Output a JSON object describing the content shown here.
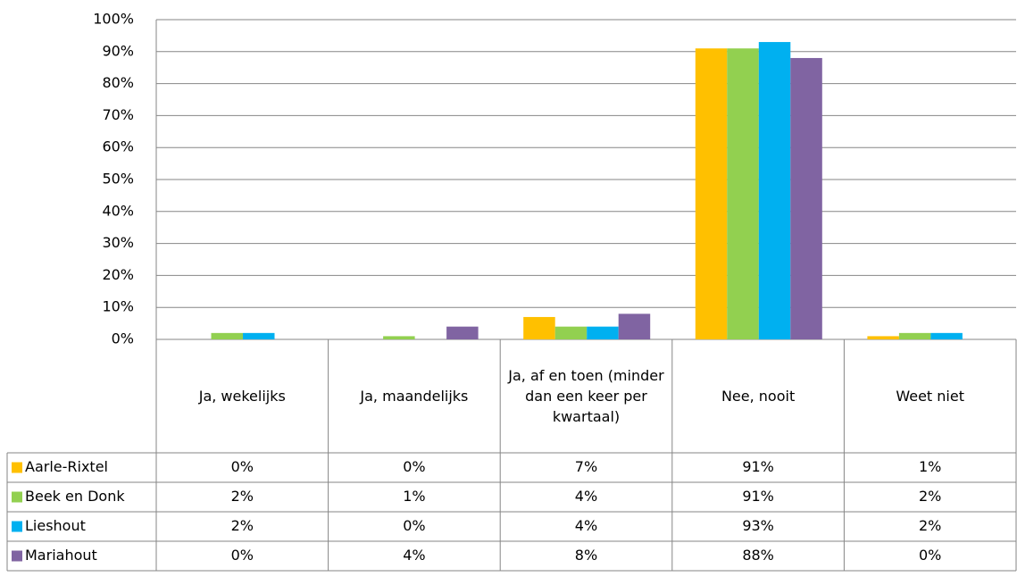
{
  "chart_data": {
    "type": "bar",
    "categories": [
      "Ja, wekelijks",
      "Ja, maandelijks",
      "Ja, af en toen (minder dan een keer per kwartaal)",
      "Nee, nooit",
      "Weet niet"
    ],
    "series": [
      {
        "name": "Aarle-Rixtel",
        "color": "#FFC000",
        "values": [
          0,
          0,
          7,
          91,
          1
        ],
        "value_labels": [
          "0%",
          "0%",
          "7%",
          "91%",
          "1%"
        ]
      },
      {
        "name": "Beek en Donk",
        "color": "#92D050",
        "values": [
          2,
          1,
          4,
          91,
          2
        ],
        "value_labels": [
          "2%",
          "1%",
          "4%",
          "91%",
          "2%"
        ]
      },
      {
        "name": "Lieshout",
        "color": "#00B0F0",
        "values": [
          2,
          0,
          4,
          93,
          2
        ],
        "value_labels": [
          "2%",
          "0%",
          "4%",
          "93%",
          "2%"
        ]
      },
      {
        "name": "Mariahout",
        "color": "#8064A2",
        "values": [
          0,
          4,
          8,
          88,
          0
        ],
        "value_labels": [
          "0%",
          "4%",
          "8%",
          "88%",
          "0%"
        ]
      }
    ],
    "ylim": [
      0,
      100
    ],
    "yticks": [
      {
        "value": 0,
        "label": "0%"
      },
      {
        "value": 10,
        "label": "10%"
      },
      {
        "value": 20,
        "label": "20%"
      },
      {
        "value": 30,
        "label": "30%"
      },
      {
        "value": 40,
        "label": "40%"
      },
      {
        "value": 50,
        "label": "50%"
      },
      {
        "value": 60,
        "label": "60%"
      },
      {
        "value": 70,
        "label": "70%"
      },
      {
        "value": 80,
        "label": "80%"
      },
      {
        "value": 90,
        "label": "90%"
      },
      {
        "value": 100,
        "label": "100%"
      }
    ],
    "grid": true
  }
}
